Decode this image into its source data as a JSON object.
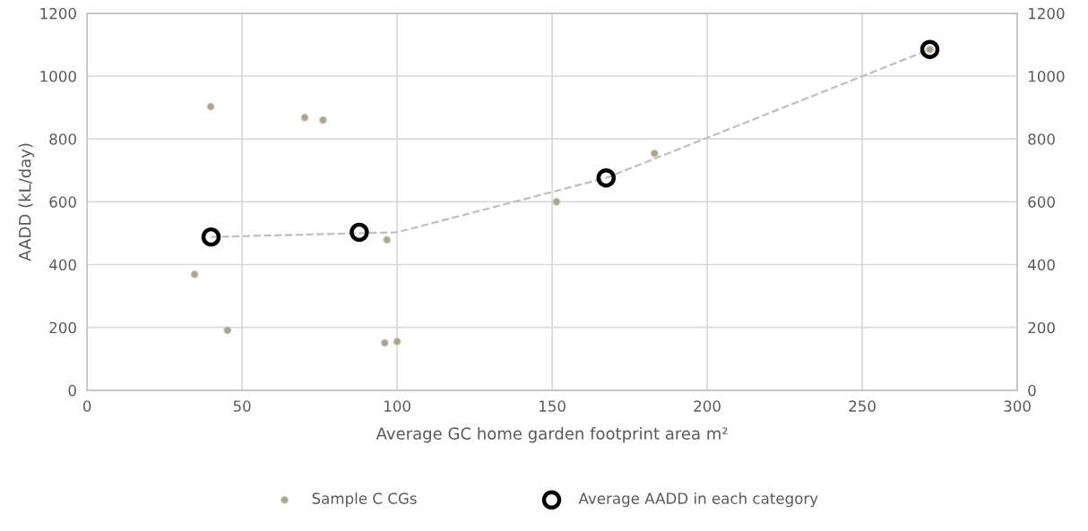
{
  "chart_data": {
    "type": "scatter",
    "xlabel": "Average GC home garden footprint area m²",
    "ylabel": "AADD (kL/day)",
    "xlim": [
      0,
      300
    ],
    "xticks": [
      0,
      50,
      100,
      150,
      200,
      250,
      300
    ],
    "ylim": [
      0,
      1200
    ],
    "yticks": [
      0,
      200,
      400,
      600,
      800,
      1000,
      1200
    ],
    "y2lim": [
      0,
      1200
    ],
    "y2ticks": [
      0,
      200,
      400,
      600,
      800,
      1000,
      1200
    ],
    "grid": true,
    "legend": "bottom",
    "marker": "circle",
    "series": [
      {
        "name": "Sample C CGs",
        "color": "#a8a596",
        "x": [
          34.7,
          39.9,
          45.3,
          70.2,
          76.1,
          96.0,
          96.7,
          100.0,
          151.4,
          183.0,
          271.8
        ],
        "values": [
          369,
          903,
          191,
          868,
          860,
          151,
          479,
          155,
          600,
          754,
          1085
        ]
      },
      {
        "type": "line",
        "line_style": "dashed",
        "marker": "none",
        "color": "#bfbfbf",
        "x": [
          40.0,
          100.0,
          167.4,
          271.8
        ],
        "values": [
          488,
          503,
          676,
          1085
        ]
      },
      {
        "name": "Average AADD in each category",
        "color": "#000000",
        "x": [
          40.0,
          87.8,
          167.4,
          271.8
        ],
        "values": [
          488,
          503,
          676,
          1085
        ]
      }
    ]
  }
}
